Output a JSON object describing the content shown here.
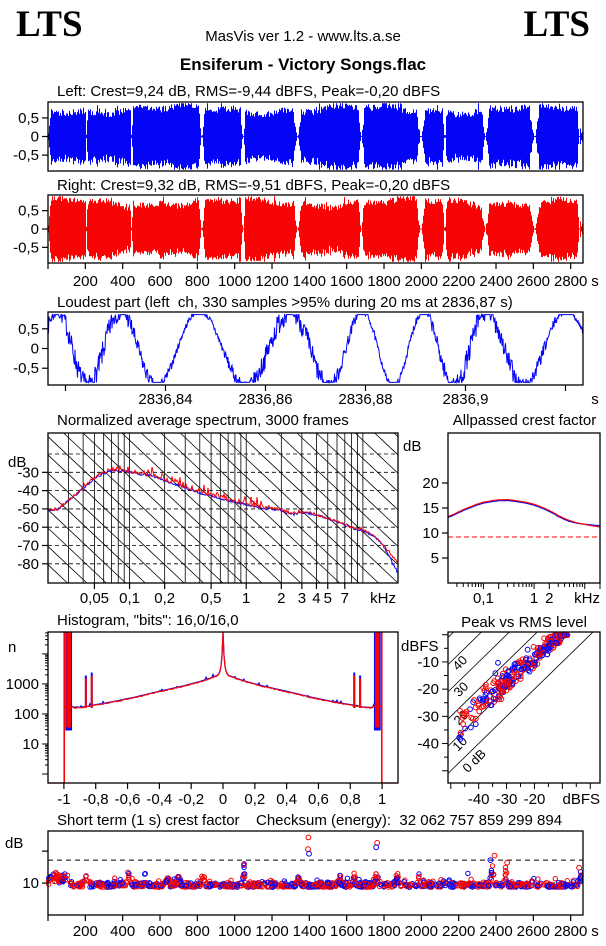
{
  "header": {
    "logo_left": "LTS",
    "logo_right": "LTS",
    "app_line": "MasVis ver 1.2 - www.lts.a.se",
    "title": "Ensiferum - Victory Songs.flac"
  },
  "colors": {
    "left_channel": "#0404f8",
    "right_channel": "#f80404",
    "axis": "#000000",
    "background": "#ffffff"
  },
  "sections": {
    "left_label": "Left: Crest=9,24 dB, RMS=-9,44 dBFS, Peak=-0,20 dBFS",
    "right_label": "Right: Crest=9,32 dB, RMS=-9,51 dBFS, Peak=-0,20 dBFS",
    "loudest_label": "Loudest part (left  ch, 330 samples >95% during 20 ms at 2836,87 s)",
    "spectrum_title": "Normalized average spectrum, 3000 frames",
    "allpassed_title": "Allpassed crest factor",
    "histogram_title": "Histogram, \"bits\": 16,0/16,0",
    "peak_rms_title": "Peak vs RMS level",
    "short_term_title": "Short term (1 s) crest factor",
    "checksum_label": "Checksum (energy):  32 062 757 859 299 894"
  },
  "chart_data": [
    {
      "id": "wave-left",
      "type": "waveform",
      "channel": "left",
      "crest_db": "9,24",
      "rms_dbfs": "-9,44",
      "peak_dbfs": "-0,20",
      "duration_s": 2866,
      "ylim": [
        -0.9,
        0.9
      ],
      "seed": 11,
      "yticks": [
        [
          0.5,
          "0,5"
        ],
        [
          0,
          "0"
        ],
        [
          -0.5,
          "-0,5"
        ]
      ],
      "gaps_s": [
        {
          "t": 822,
          "w": 2,
          "f": 14
        },
        {
          "t": 1043,
          "w": 2,
          "f": 10
        },
        {
          "t": 1335,
          "w": 3,
          "f": 16
        },
        {
          "t": 1676,
          "w": 2,
          "f": 12
        },
        {
          "t": 1995,
          "w": 3,
          "f": 20
        },
        {
          "t": 2124,
          "w": 2,
          "f": 8
        },
        {
          "t": 2341,
          "w": 2,
          "f": 18
        },
        {
          "t": 2605,
          "w": 3,
          "f": 22
        },
        {
          "t": 205,
          "w": 1,
          "f": 4
        },
        {
          "t": 446,
          "w": 1,
          "f": 4
        },
        {
          "t": 2845,
          "w": 1,
          "f": 10
        }
      ]
    },
    {
      "id": "wave-right",
      "type": "waveform",
      "channel": "right",
      "crest_db": "9,32",
      "rms_dbfs": "-9,51",
      "peak_dbfs": "-0,20",
      "duration_s": 2866,
      "ylim": [
        -0.9,
        0.9
      ],
      "seed": 29,
      "yticks": [
        [
          0.5,
          "0,5"
        ],
        [
          0,
          "0"
        ],
        [
          -0.5,
          "-0,5"
        ]
      ],
      "xticks": [
        [
          200,
          "200"
        ],
        [
          400,
          "400"
        ],
        [
          600,
          "600"
        ],
        [
          800,
          "800"
        ],
        [
          1000,
          "1000"
        ],
        [
          1200,
          "1200"
        ],
        [
          1400,
          "1400"
        ],
        [
          1600,
          "1600"
        ],
        [
          1800,
          "1800"
        ],
        [
          2000,
          "2000"
        ],
        [
          2200,
          "2200"
        ],
        [
          2400,
          "2400"
        ],
        [
          2600,
          "2600"
        ],
        [
          2800,
          "2800"
        ]
      ],
      "x_unit": "s",
      "gaps_s": [
        {
          "t": 822,
          "w": 2,
          "f": 14
        },
        {
          "t": 1043,
          "w": 2,
          "f": 10
        },
        {
          "t": 1335,
          "w": 3,
          "f": 16
        },
        {
          "t": 1676,
          "w": 2,
          "f": 12
        },
        {
          "t": 1995,
          "w": 3,
          "f": 20
        },
        {
          "t": 2124,
          "w": 2,
          "f": 8
        },
        {
          "t": 2341,
          "w": 2,
          "f": 18
        },
        {
          "t": 2605,
          "w": 3,
          "f": 22
        },
        {
          "t": 205,
          "w": 1,
          "f": 4
        },
        {
          "t": 446,
          "w": 1,
          "f": 4
        },
        {
          "t": 2845,
          "w": 1,
          "f": 10
        }
      ]
    },
    {
      "id": "loudest",
      "type": "loudest-line",
      "seed": 7,
      "xlim": [
        2836.8165,
        2836.9235
      ],
      "ylim": [
        -0.9,
        0.9
      ],
      "clip_level": 0.86,
      "yticks": [
        [
          0.5,
          "0,5"
        ],
        [
          0,
          "0"
        ],
        [
          -0.5,
          "-0,5"
        ]
      ],
      "xticks": [
        [
          2836.82,
          ""
        ],
        [
          2836.84,
          "2836,84"
        ],
        [
          2836.86,
          "2836,86"
        ],
        [
          2836.88,
          "2836,88"
        ],
        [
          2836.9,
          "2836,9"
        ],
        [
          2836.92,
          ""
        ]
      ],
      "x_unit": "s",
      "cycles": 7.3,
      "noise": 0.5
    },
    {
      "id": "spectrum",
      "type": "spectrum",
      "seed": 41,
      "xlim_khz": [
        0.02,
        20
      ],
      "ylim_db": [
        -90.5,
        -8.5
      ],
      "y_unit": "dB",
      "x_unit": "kHz",
      "yticks": [
        [
          -30,
          "-30"
        ],
        [
          -40,
          "-40"
        ],
        [
          -50,
          "-50"
        ],
        [
          -60,
          "-60"
        ],
        [
          -70,
          "-70"
        ],
        [
          -80,
          "-80"
        ]
      ],
      "xticks": [
        [
          0.05,
          "0,05"
        ],
        [
          0.1,
          "0,1"
        ],
        [
          0.2,
          "0,2"
        ],
        [
          0.5,
          "0,5"
        ],
        [
          1,
          "1"
        ],
        [
          2,
          "2"
        ],
        [
          3,
          "3"
        ],
        [
          4,
          "4"
        ],
        [
          5,
          "5"
        ],
        [
          7,
          "7"
        ]
      ],
      "dashed_db": [
        -20,
        -30,
        -40,
        -50,
        -60,
        -70,
        -80
      ],
      "diag_slope_db_per_decade": -60,
      "diag_step_db": 10,
      "keypoints_khz_db": [
        [
          0.02,
          -50.5
        ],
        [
          0.024,
          -50.5
        ],
        [
          0.03,
          -45.5
        ],
        [
          0.04,
          -38.5
        ],
        [
          0.05,
          -33.5
        ],
        [
          0.06,
          -30.5
        ],
        [
          0.07,
          -29.2
        ],
        [
          0.08,
          -28.8
        ],
        [
          0.09,
          -29.3
        ],
        [
          0.1,
          -30
        ],
        [
          0.12,
          -30.8
        ],
        [
          0.15,
          -31.8
        ],
        [
          0.2,
          -34.5
        ],
        [
          0.25,
          -36.8
        ],
        [
          0.3,
          -38.5
        ],
        [
          0.4,
          -41.2
        ],
        [
          0.5,
          -43
        ],
        [
          0.6,
          -44.3
        ],
        [
          0.7,
          -45.4
        ],
        [
          0.85,
          -46.6
        ],
        [
          1,
          -47.6
        ],
        [
          1.2,
          -48.8
        ],
        [
          1.5,
          -49.8
        ],
        [
          1.8,
          -50.2
        ],
        [
          2,
          -50.6
        ],
        [
          2.2,
          -52.2
        ],
        [
          2.5,
          -53
        ],
        [
          2.8,
          -52.4
        ],
        [
          3,
          -52
        ],
        [
          3.5,
          -52.6
        ],
        [
          4,
          -53.6
        ],
        [
          4.5,
          -54.4
        ],
        [
          5,
          -55.4
        ],
        [
          6,
          -57
        ],
        [
          7,
          -58.6
        ],
        [
          8,
          -60.4
        ],
        [
          9,
          -61.2
        ],
        [
          10,
          -62
        ],
        [
          11,
          -63
        ],
        [
          12,
          -64.4
        ],
        [
          13,
          -66
        ],
        [
          14,
          -68
        ],
        [
          15,
          -70
        ],
        [
          16,
          -72.5
        ],
        [
          17,
          -74.5
        ],
        [
          18,
          -76.5
        ],
        [
          19,
          -78
        ],
        [
          20,
          -79.5
        ]
      ],
      "blue_tail_extra_db_per_khz_above_15khz": -1.1,
      "red_jitter_db_mid": 3.6,
      "red_jitter_band_khz": [
        0.08,
        1.6
      ]
    },
    {
      "id": "allpassed",
      "type": "allpassed-crest",
      "seed": 5,
      "xlim_khz": [
        0.02,
        20
      ],
      "ylim_db": [
        0,
        30
      ],
      "y_unit": "dB",
      "x_unit": "kHz",
      "yticks": [
        [
          20,
          "20"
        ],
        [
          15,
          "15"
        ],
        [
          10,
          "10"
        ],
        [
          5,
          "5"
        ]
      ],
      "xticks": [
        [
          0.1,
          "0,1"
        ],
        [
          1,
          "1"
        ],
        [
          2,
          "2"
        ]
      ],
      "ref_dashed_db": 9.2,
      "keypoints_khz_db": [
        [
          0.02,
          13.1
        ],
        [
          0.03,
          13.9
        ],
        [
          0.04,
          14.5
        ],
        [
          0.05,
          14.9
        ],
        [
          0.07,
          15.5
        ],
        [
          0.1,
          16.0
        ],
        [
          0.15,
          16.3
        ],
        [
          0.2,
          16.45
        ],
        [
          0.3,
          16.5
        ],
        [
          0.4,
          16.35
        ],
        [
          0.5,
          16.2
        ],
        [
          0.7,
          15.95
        ],
        [
          1,
          15.55
        ],
        [
          1.4,
          15.0
        ],
        [
          2,
          14.3
        ],
        [
          3,
          13.3
        ],
        [
          4,
          12.7
        ],
        [
          5,
          12.3
        ],
        [
          7,
          11.95
        ],
        [
          10,
          11.75
        ],
        [
          14,
          11.6
        ],
        [
          20,
          11.45
        ]
      ],
      "red_offset_db": 0.18
    },
    {
      "id": "histogram",
      "type": "histogram",
      "seed": 13,
      "bits_label": "16,0/16,0",
      "xlim": [
        -1.1,
        1.1
      ],
      "ylog10_range": [
        -0.3,
        4.73
      ],
      "y_unit": "n",
      "yticks": [
        [
          1000,
          "1000"
        ],
        [
          100,
          "100"
        ],
        [
          10,
          "10"
        ]
      ],
      "xticks": [
        [
          -1,
          "-1"
        ],
        [
          -0.8,
          "-0,8"
        ],
        [
          -0.6,
          "-0,6"
        ],
        [
          -0.4,
          "-0,4"
        ],
        [
          -0.2,
          "-0,2"
        ],
        [
          0,
          "0"
        ],
        [
          0.2,
          "0,2"
        ],
        [
          0.4,
          "0,4"
        ],
        [
          0.6,
          "0,6"
        ],
        [
          0.8,
          "0,8"
        ],
        [
          1,
          "1"
        ]
      ],
      "curve_abs_x_log10n": [
        [
          0,
          3.42
        ],
        [
          0.03,
          3.28
        ],
        [
          0.08,
          3.18
        ],
        [
          0.15,
          3.06
        ],
        [
          0.25,
          2.92
        ],
        [
          0.35,
          2.8
        ],
        [
          0.45,
          2.68
        ],
        [
          0.55,
          2.55
        ],
        [
          0.65,
          2.44
        ],
        [
          0.75,
          2.34
        ],
        [
          0.82,
          2.28
        ],
        [
          0.88,
          2.22
        ],
        [
          0.93,
          2.2
        ],
        [
          0.955,
          2.25
        ]
      ],
      "center_cusp": {
        "height_log10": 1.35,
        "width": 0.007
      },
      "side_spikes": [
        {
          "x": 0.825,
          "top_log10": 3.28
        },
        {
          "x": 0.862,
          "top_log10": 3.18
        }
      ],
      "clip_band": {
        "x0": 0.955,
        "x1": 0.985,
        "bottom_log10": 1.55,
        "top_log10": 4.73
      },
      "edge_spike_x": 0.998
    },
    {
      "id": "peak-vs-rms",
      "type": "scatter-peak-rms",
      "seed": 71,
      "xlim_dbfs": [
        -51,
        3.5
      ],
      "ylim_dbfs": [
        -54.5,
        1
      ],
      "x_unit": "dBFS",
      "y_unit": "dBFS",
      "xticks": [
        [
          -40,
          "-40"
        ],
        [
          -30,
          "-30"
        ],
        [
          -20,
          "-20"
        ]
      ],
      "yticks": [
        [
          -10,
          "-10"
        ],
        [
          -20,
          "-20"
        ],
        [
          -30,
          "-30"
        ],
        [
          -40,
          "-40"
        ]
      ],
      "diagonals_crest_db": [
        0,
        10,
        20,
        30,
        40,
        50
      ],
      "diag_labels": [
        {
          "text": "40",
          "x": -45.6,
          "y": -11.5
        },
        {
          "text": "30",
          "x": -45.2,
          "y": -21.2
        },
        {
          "text": "20",
          "x": -45.2,
          "y": -31.6
        },
        {
          "text": "10",
          "x": -45.6,
          "y": -41.2
        },
        {
          "text": "0 dB",
          "x": -40.5,
          "y": -47.5
        }
      ],
      "clusters": [
        {
          "n": 130,
          "rms_range": [
            -20,
            -8
          ],
          "crest_mu": 11,
          "crest_sd": 1.7
        },
        {
          "n": 110,
          "rms_range": [
            -33,
            -20
          ],
          "crest_mu": 12.5,
          "crest_sd": 2.3
        },
        {
          "n": 60,
          "rms_range": [
            -47,
            -33
          ],
          "crest_mu": 13.5,
          "crest_sd": 3.2
        }
      ],
      "peak_ceiling_dbfs": -0.2,
      "blue_fraction": 0.42
    },
    {
      "id": "short-term-crest",
      "type": "scatter-time",
      "seed": 97,
      "duration_s": 2866,
      "ylim_db": [
        0,
        26.3
      ],
      "y_unit": "dB",
      "x_unit": "s",
      "yticks": [
        [
          10,
          "10"
        ],
        [
          20,
          ""
        ]
      ],
      "xticks": [
        [
          200,
          "200"
        ],
        [
          400,
          "400"
        ],
        [
          600,
          "600"
        ],
        [
          800,
          "800"
        ],
        [
          1000,
          "1000"
        ],
        [
          1200,
          "1200"
        ],
        [
          1400,
          "1400"
        ],
        [
          1600,
          "1600"
        ],
        [
          1800,
          "1800"
        ],
        [
          2000,
          "2000"
        ],
        [
          2200,
          "2200"
        ],
        [
          2400,
          "2400"
        ],
        [
          2600,
          "2600"
        ],
        [
          2800,
          "2800"
        ]
      ],
      "dashed_line_db": 17.2,
      "dotted_line_db": 10,
      "base_db": 8.7,
      "bumps": [
        {
          "t": 30,
          "a": 4,
          "w": 30
        },
        {
          "t": 90,
          "a": 3.5,
          "w": 25
        },
        {
          "t": 200,
          "a": 5,
          "w": 8
        },
        {
          "t": 430,
          "a": 4,
          "w": 12
        },
        {
          "t": 520,
          "a": 4.5,
          "w": 6
        },
        {
          "t": 640,
          "a": 3.5,
          "w": 10
        },
        {
          "t": 700,
          "a": 3,
          "w": 10
        },
        {
          "t": 830,
          "a": 4.5,
          "w": 10
        },
        {
          "t": 1050,
          "a": 6,
          "w": 8
        },
        {
          "t": 1340,
          "a": 3,
          "w": 10
        },
        {
          "t": 1560,
          "a": 3,
          "w": 12
        },
        {
          "t": 1640,
          "a": 3.5,
          "w": 8
        },
        {
          "t": 1760,
          "a": 4,
          "w": 10
        },
        {
          "t": 1870,
          "a": 3,
          "w": 10
        },
        {
          "t": 1990,
          "a": 3.5,
          "w": 6
        },
        {
          "t": 2120,
          "a": 3.5,
          "w": 6
        },
        {
          "t": 2250,
          "a": 3,
          "w": 8
        },
        {
          "t": 2380,
          "a": 7,
          "w": 10
        },
        {
          "t": 2450,
          "a": 5,
          "w": 8
        },
        {
          "t": 2600,
          "a": 3,
          "w": 8
        },
        {
          "t": 2860,
          "a": 5,
          "w": 15
        }
      ],
      "outliers": [
        {
          "t": 1395,
          "v": 24.3,
          "c": "red"
        },
        {
          "t": 1393,
          "v": 20.6,
          "c": "red"
        },
        {
          "t": 1398,
          "v": 19.2,
          "c": "blue"
        },
        {
          "t": 1763,
          "v": 22.6,
          "c": "red"
        },
        {
          "t": 1758,
          "v": 21.2,
          "c": "blue"
        },
        {
          "t": 2392,
          "v": 18.6,
          "c": "red"
        },
        {
          "t": 2370,
          "v": 17.2,
          "c": "blue"
        },
        {
          "t": 2460,
          "v": 16.4,
          "c": "red"
        },
        {
          "t": 1050,
          "v": 15.8,
          "c": "red"
        },
        {
          "t": 2845,
          "v": 14.8,
          "c": "red"
        }
      ]
    }
  ]
}
